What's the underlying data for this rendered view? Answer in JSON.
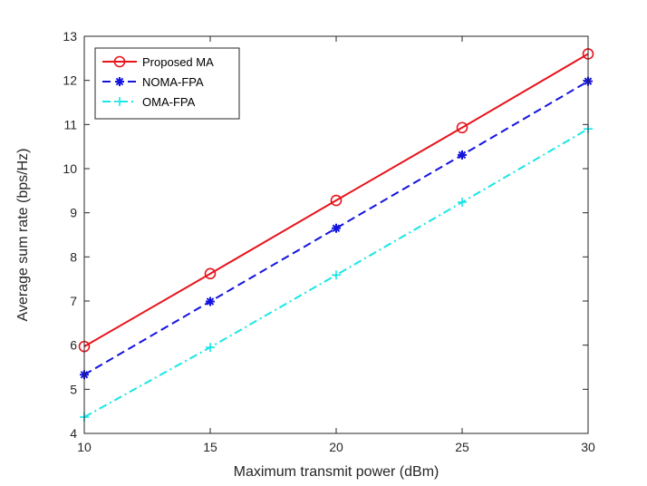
{
  "chart_data": {
    "type": "line",
    "title": "",
    "xlabel": "Maximum transmit power (dBm)",
    "ylabel": "Average sum rate (bps/Hz)",
    "x": [
      10,
      15,
      20,
      25,
      30
    ],
    "xlim": [
      10,
      30
    ],
    "ylim": [
      4,
      13
    ],
    "xticks": [
      10,
      15,
      20,
      25,
      30
    ],
    "yticks": [
      4,
      5,
      6,
      7,
      8,
      9,
      10,
      11,
      12,
      13
    ],
    "grid": false,
    "legend_position": "top-left",
    "series": [
      {
        "name": "Proposed MA",
        "values": [
          5.97,
          7.62,
          9.28,
          10.93,
          12.6
        ],
        "color": "#e8141c",
        "line": "solid",
        "marker": "circle"
      },
      {
        "name": "NOMA-FPA",
        "values": [
          5.33,
          6.99,
          8.65,
          10.31,
          11.98
        ],
        "color": "#1414e0",
        "line": "dashed",
        "marker": "asterisk"
      },
      {
        "name": "OMA-FPA",
        "values": [
          4.37,
          5.95,
          7.59,
          9.24,
          10.9
        ],
        "color": "#19e6e6",
        "line": "dashdot",
        "marker": "plus"
      }
    ]
  }
}
